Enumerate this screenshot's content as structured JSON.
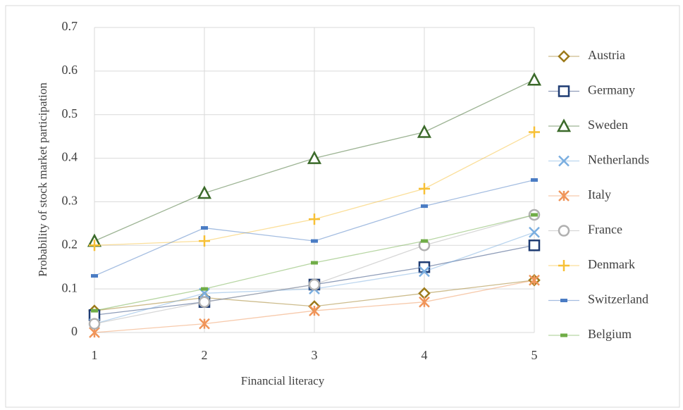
{
  "chart_data": {
    "type": "line",
    "xlabel": "Financial literacy",
    "ylabel": "Probability of stock market participation",
    "x": [
      1,
      2,
      3,
      4,
      5
    ],
    "xlim": [
      1,
      5
    ],
    "xticks": [
      1,
      2,
      3,
      4,
      5
    ],
    "ylim": [
      0,
      0.7
    ],
    "yticks": [
      0,
      0.1,
      0.2,
      0.3,
      0.4,
      0.5,
      0.6,
      0.7
    ],
    "grid": true,
    "legend": "right",
    "series": [
      {
        "name": "Austria",
        "color": "#9c7a1a",
        "marker": "diamond",
        "values": [
          0.05,
          0.08,
          0.06,
          0.09,
          0.12
        ]
      },
      {
        "name": "Germany",
        "color": "#1f3c73",
        "marker": "square",
        "values": [
          0.04,
          0.07,
          0.11,
          0.15,
          0.2
        ]
      },
      {
        "name": "Sweden",
        "color": "#3b6a2a",
        "marker": "triangle",
        "values": [
          0.21,
          0.32,
          0.4,
          0.46,
          0.58
        ]
      },
      {
        "name": "Netherlands",
        "color": "#7aaee0",
        "marker": "x",
        "values": [
          0.02,
          0.09,
          0.1,
          0.14,
          0.23
        ]
      },
      {
        "name": "Italy",
        "color": "#f0955a",
        "marker": "star",
        "values": [
          0.0,
          0.02,
          0.05,
          0.07,
          0.12
        ]
      },
      {
        "name": "France",
        "color": "#b0b0b0",
        "marker": "circle",
        "values": [
          0.02,
          0.07,
          0.11,
          0.2,
          0.27
        ]
      },
      {
        "name": "Denmark",
        "color": "#f7c035",
        "marker": "plus",
        "values": [
          0.2,
          0.21,
          0.26,
          0.33,
          0.46
        ]
      },
      {
        "name": "Switzerland",
        "color": "#4a7cc4",
        "marker": "dash",
        "values": [
          0.13,
          0.24,
          0.21,
          0.29,
          0.35
        ]
      },
      {
        "name": "Belgium",
        "color": "#70ad47",
        "marker": "dash",
        "values": [
          0.05,
          0.1,
          0.16,
          0.21,
          0.27
        ]
      }
    ]
  }
}
